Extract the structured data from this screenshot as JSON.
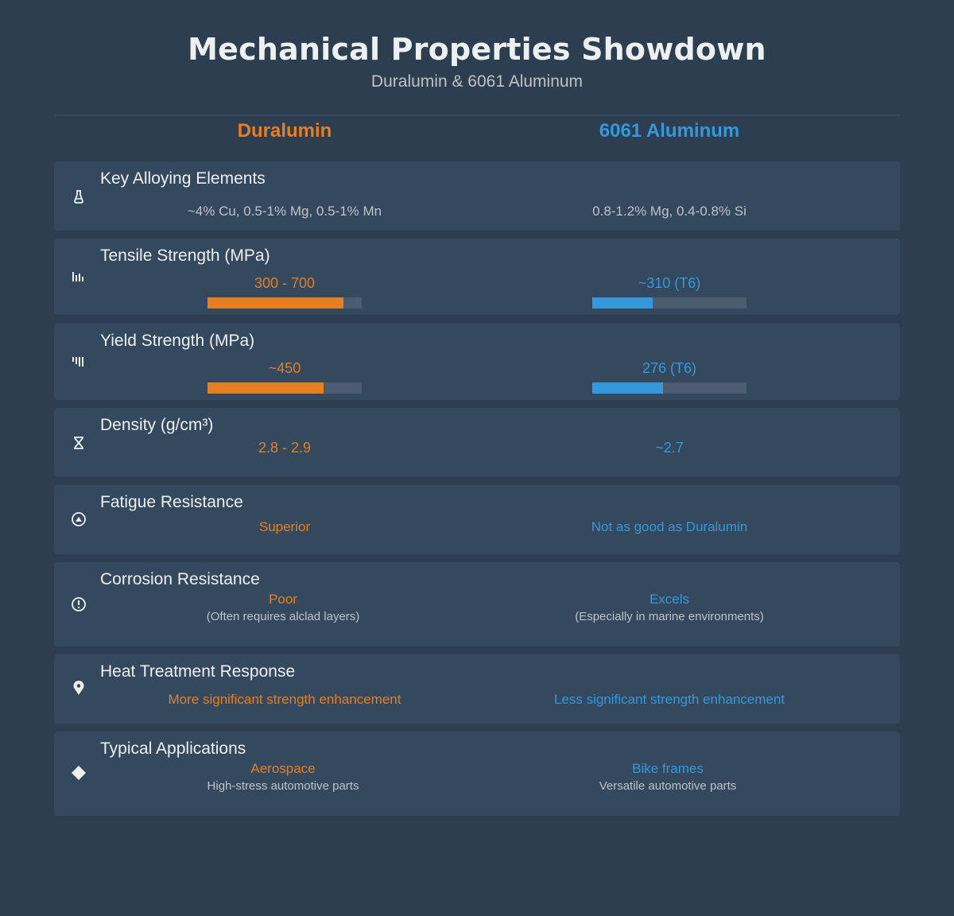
{
  "header": {
    "title": "Mechanical Properties Showdown",
    "subtitle": "Duralumin & 6061 Aluminum"
  },
  "columns": {
    "a": "Duralumin",
    "b": "6061 Aluminum"
  },
  "colors": {
    "background": "#2c3e50",
    "card": "#34495e",
    "duralumin": "#e67e22",
    "aluminum6061": "#3498db"
  },
  "rows": [
    {
      "label": "Key Alloying Elements",
      "icon": "flask-icon",
      "a": {
        "value": "~4% Cu, 0.5-1% Mg, 0.5-1% Mn"
      },
      "b": {
        "value": "0.8-1.2% Mg, 0.4-0.8% Si"
      }
    },
    {
      "label": "Tensile Strength (MPa)",
      "icon": "bar-chart-icon",
      "a": {
        "value": "300 - 700",
        "level": 0.88
      },
      "b": {
        "value": "~310 (T6)",
        "level": 0.39
      }
    },
    {
      "label": "Yield Strength (MPa)",
      "icon": "strength-bars-icon",
      "a": {
        "value": "~450",
        "level": 0.75
      },
      "b": {
        "value": "276 (T6)",
        "level": 0.46
      }
    },
    {
      "label": "Density (g/cm³)",
      "icon": "scale-icon",
      "a": {
        "value": "2.8 - 2.9"
      },
      "b": {
        "value": "~2.7"
      }
    },
    {
      "label": "Fatigue Resistance",
      "icon": "gauge-icon",
      "a": {
        "value": "Superior"
      },
      "b": {
        "value": "Not as good as Duralumin"
      }
    },
    {
      "label": "Corrosion Resistance",
      "icon": "alert-circle-icon",
      "a": {
        "value": "Poor",
        "note": "(Often requires alclad layers)"
      },
      "b": {
        "value": "Excels",
        "note": "(Especially in marine environments)"
      }
    },
    {
      "label": "Heat Treatment Response",
      "icon": "map-pin-icon",
      "a": {
        "value": "More significant strength enhancement"
      },
      "b": {
        "value": "Less significant strength enhancement"
      }
    },
    {
      "label": "Typical Applications",
      "icon": "diamond-icon",
      "a": {
        "value": "Aerospace",
        "note": "High-stress automotive parts"
      },
      "b": {
        "value": "Bike frames",
        "note": "Versatile automotive parts"
      }
    }
  ]
}
